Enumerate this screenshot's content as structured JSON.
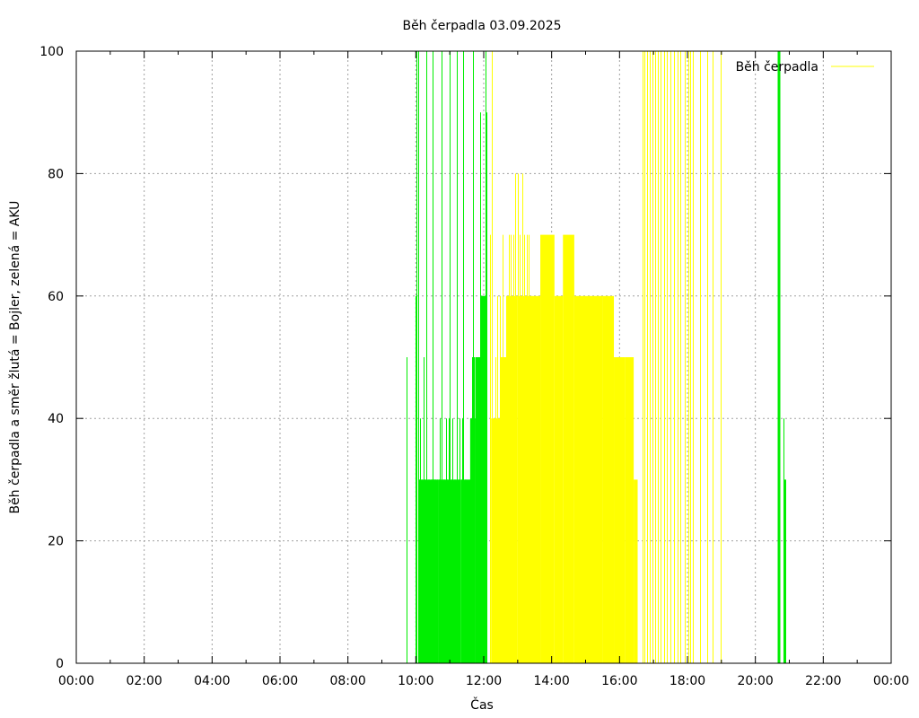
{
  "chart_data": {
    "type": "bar",
    "title": "Běh čerpadla 03.09.2025",
    "xlabel": "Čas",
    "ylabel": "Běh čerpadla a směr žlutá = Bojler, zelená = AKU",
    "xlim": [
      "00:00",
      "24:00"
    ],
    "ylim": [
      0,
      100
    ],
    "x_ticks": [
      "00:00",
      "02:00",
      "04:00",
      "06:00",
      "08:00",
      "10:00",
      "12:00",
      "14:00",
      "16:00",
      "18:00",
      "20:00",
      "22:00",
      "00:00"
    ],
    "y_ticks": [
      "0",
      "20",
      "40",
      "60",
      "80",
      "100"
    ],
    "grid": true,
    "legend": {
      "position": "top-right",
      "entries": [
        "Běh čerpadla"
      ]
    },
    "colors": {
      "bojler": "#ffff00",
      "aku": "#00ee00",
      "legend_line": "#ffff00"
    },
    "series": [
      {
        "color_key": "aku",
        "bars": [
          {
            "x": "09:43",
            "y": 50
          },
          {
            "x": "10:00",
            "y": 60
          },
          {
            "x": "10:01",
            "y": 100
          },
          {
            "x": "10:04",
            "y": 100
          },
          {
            "x": "10:06",
            "y": 30
          },
          {
            "x": "10:08",
            "y": 40
          },
          {
            "x": "10:11",
            "y": 30
          },
          {
            "x": "10:13",
            "y": 50
          },
          {
            "x": "10:16",
            "y": 30
          },
          {
            "x": "10:18",
            "y": 100
          },
          {
            "x": "10:21",
            "y": 30
          },
          {
            "x": "10:23",
            "y": 30
          },
          {
            "x": "10:26",
            "y": 30
          },
          {
            "x": "10:28",
            "y": 30
          },
          {
            "x": "10:29",
            "y": 100
          },
          {
            "x": "10:31",
            "y": 30
          },
          {
            "x": "10:33",
            "y": 30
          },
          {
            "x": "10:35",
            "y": 30
          },
          {
            "x": "10:38",
            "y": 30
          },
          {
            "x": "10:40",
            "y": 30
          },
          {
            "x": "10:43",
            "y": 40
          },
          {
            "x": "10:45",
            "y": 100
          },
          {
            "x": "10:46",
            "y": 40
          },
          {
            "x": "10:48",
            "y": 30
          },
          {
            "x": "10:51",
            "y": 30
          },
          {
            "x": "10:53",
            "y": 40
          },
          {
            "x": "10:55",
            "y": 30
          },
          {
            "x": "10:58",
            "y": 40
          },
          {
            "x": "11:00",
            "y": 100
          },
          {
            "x": "11:03",
            "y": 30
          },
          {
            "x": "11:05",
            "y": 40
          },
          {
            "x": "11:08",
            "y": 30
          },
          {
            "x": "11:10",
            "y": 30
          },
          {
            "x": "11:12",
            "y": 100
          },
          {
            "x": "11:15",
            "y": 30
          },
          {
            "x": "11:17",
            "y": 40
          },
          {
            "x": "11:20",
            "y": 30
          },
          {
            "x": "11:22",
            "y": 40
          },
          {
            "x": "11:24",
            "y": 100
          },
          {
            "x": "11:27",
            "y": 30
          },
          {
            "x": "11:29",
            "y": 30
          },
          {
            "x": "11:32",
            "y": 30
          },
          {
            "x": "11:34",
            "y": 30
          },
          {
            "x": "11:37",
            "y": 40
          },
          {
            "x": "11:39",
            "y": 50
          },
          {
            "x": "11:41",
            "y": 100
          },
          {
            "x": "11:43",
            "y": 50
          },
          {
            "x": "11:45",
            "y": 40
          },
          {
            "x": "11:47",
            "y": 40
          },
          {
            "x": "11:49",
            "y": 40
          },
          {
            "x": "11:51",
            "y": 50
          },
          {
            "x": "11:53",
            "y": 90
          },
          {
            "x": "11:55",
            "y": 60
          },
          {
            "x": "11:57",
            "y": 60
          },
          {
            "x": "11:59",
            "y": 60
          },
          {
            "x": "12:01",
            "y": 60
          },
          {
            "x": "12:03",
            "y": 100
          },
          {
            "x": "12:05",
            "y": 90
          },
          {
            "x": "20:40",
            "y": 100
          },
          {
            "x": "20:41",
            "y": 100
          },
          {
            "x": "20:50",
            "y": 40
          },
          {
            "x": "20:51",
            "y": 30
          },
          {
            "x": "20:53",
            "y": 30
          }
        ],
        "blocks": [
          {
            "from": "10:05",
            "to": "10:20",
            "y": 30
          },
          {
            "from": "10:20",
            "to": "10:40",
            "y": 30
          },
          {
            "from": "10:40",
            "to": "11:00",
            "y": 30
          },
          {
            "from": "11:00",
            "to": "11:20",
            "y": 30
          },
          {
            "from": "11:20",
            "to": "11:36",
            "y": 30
          },
          {
            "from": "11:36",
            "to": "11:45",
            "y": 40
          },
          {
            "from": "11:45",
            "to": "11:55",
            "y": 50
          },
          {
            "from": "11:55",
            "to": "12:06",
            "y": 60
          }
        ]
      },
      {
        "color_key": "bojler",
        "bars": [
          {
            "x": "12:11",
            "y": 70
          },
          {
            "x": "12:14",
            "y": 100
          },
          {
            "x": "12:17",
            "y": 40
          },
          {
            "x": "12:20",
            "y": 50
          },
          {
            "x": "12:23",
            "y": 60
          },
          {
            "x": "12:28",
            "y": 60
          },
          {
            "x": "12:34",
            "y": 70
          },
          {
            "x": "12:39",
            "y": 60
          },
          {
            "x": "12:44",
            "y": 70
          },
          {
            "x": "12:48",
            "y": 70
          },
          {
            "x": "12:52",
            "y": 70
          },
          {
            "x": "12:56",
            "y": 80
          },
          {
            "x": "13:00",
            "y": 80
          },
          {
            "x": "13:04",
            "y": 70
          },
          {
            "x": "13:08",
            "y": 80
          },
          {
            "x": "13:12",
            "y": 70
          },
          {
            "x": "13:16",
            "y": 70
          },
          {
            "x": "13:20",
            "y": 70
          },
          {
            "x": "16:40",
            "y": 100
          },
          {
            "x": "16:44",
            "y": 100
          },
          {
            "x": "16:48",
            "y": 100
          },
          {
            "x": "16:53",
            "y": 100
          },
          {
            "x": "16:58",
            "y": 100
          },
          {
            "x": "17:03",
            "y": 100
          },
          {
            "x": "17:08",
            "y": 100
          },
          {
            "x": "17:13",
            "y": 100
          },
          {
            "x": "17:18",
            "y": 100
          },
          {
            "x": "17:24",
            "y": 100
          },
          {
            "x": "17:30",
            "y": 100
          },
          {
            "x": "17:36",
            "y": 100
          },
          {
            "x": "17:42",
            "y": 100
          },
          {
            "x": "17:48",
            "y": 100
          },
          {
            "x": "17:55",
            "y": 100
          },
          {
            "x": "18:02",
            "y": 100
          },
          {
            "x": "18:05",
            "y": 100
          },
          {
            "x": "18:10",
            "y": 100
          },
          {
            "x": "18:22",
            "y": 100
          },
          {
            "x": "18:35",
            "y": 100
          },
          {
            "x": "18:45",
            "y": 100
          },
          {
            "x": "18:58",
            "y": 100
          }
        ],
        "blocks": [
          {
            "from": "12:13",
            "to": "12:30",
            "y": 40
          },
          {
            "from": "12:30",
            "to": "12:40",
            "y": 50
          },
          {
            "from": "12:40",
            "to": "13:00",
            "y": 60
          },
          {
            "from": "13:00",
            "to": "13:20",
            "y": 60
          },
          {
            "from": "13:20",
            "to": "13:40",
            "y": 60
          },
          {
            "from": "13:40",
            "to": "14:05",
            "y": 70
          },
          {
            "from": "14:05",
            "to": "14:20",
            "y": 60
          },
          {
            "from": "14:20",
            "to": "14:40",
            "y": 70
          },
          {
            "from": "14:40",
            "to": "15:00",
            "y": 60
          },
          {
            "from": "15:00",
            "to": "15:30",
            "y": 60
          },
          {
            "from": "15:30",
            "to": "15:50",
            "y": 60
          },
          {
            "from": "15:50",
            "to": "16:10",
            "y": 50
          },
          {
            "from": "16:10",
            "to": "16:25",
            "y": 50
          },
          {
            "from": "16:25",
            "to": "16:32",
            "y": 30
          }
        ]
      }
    ]
  }
}
